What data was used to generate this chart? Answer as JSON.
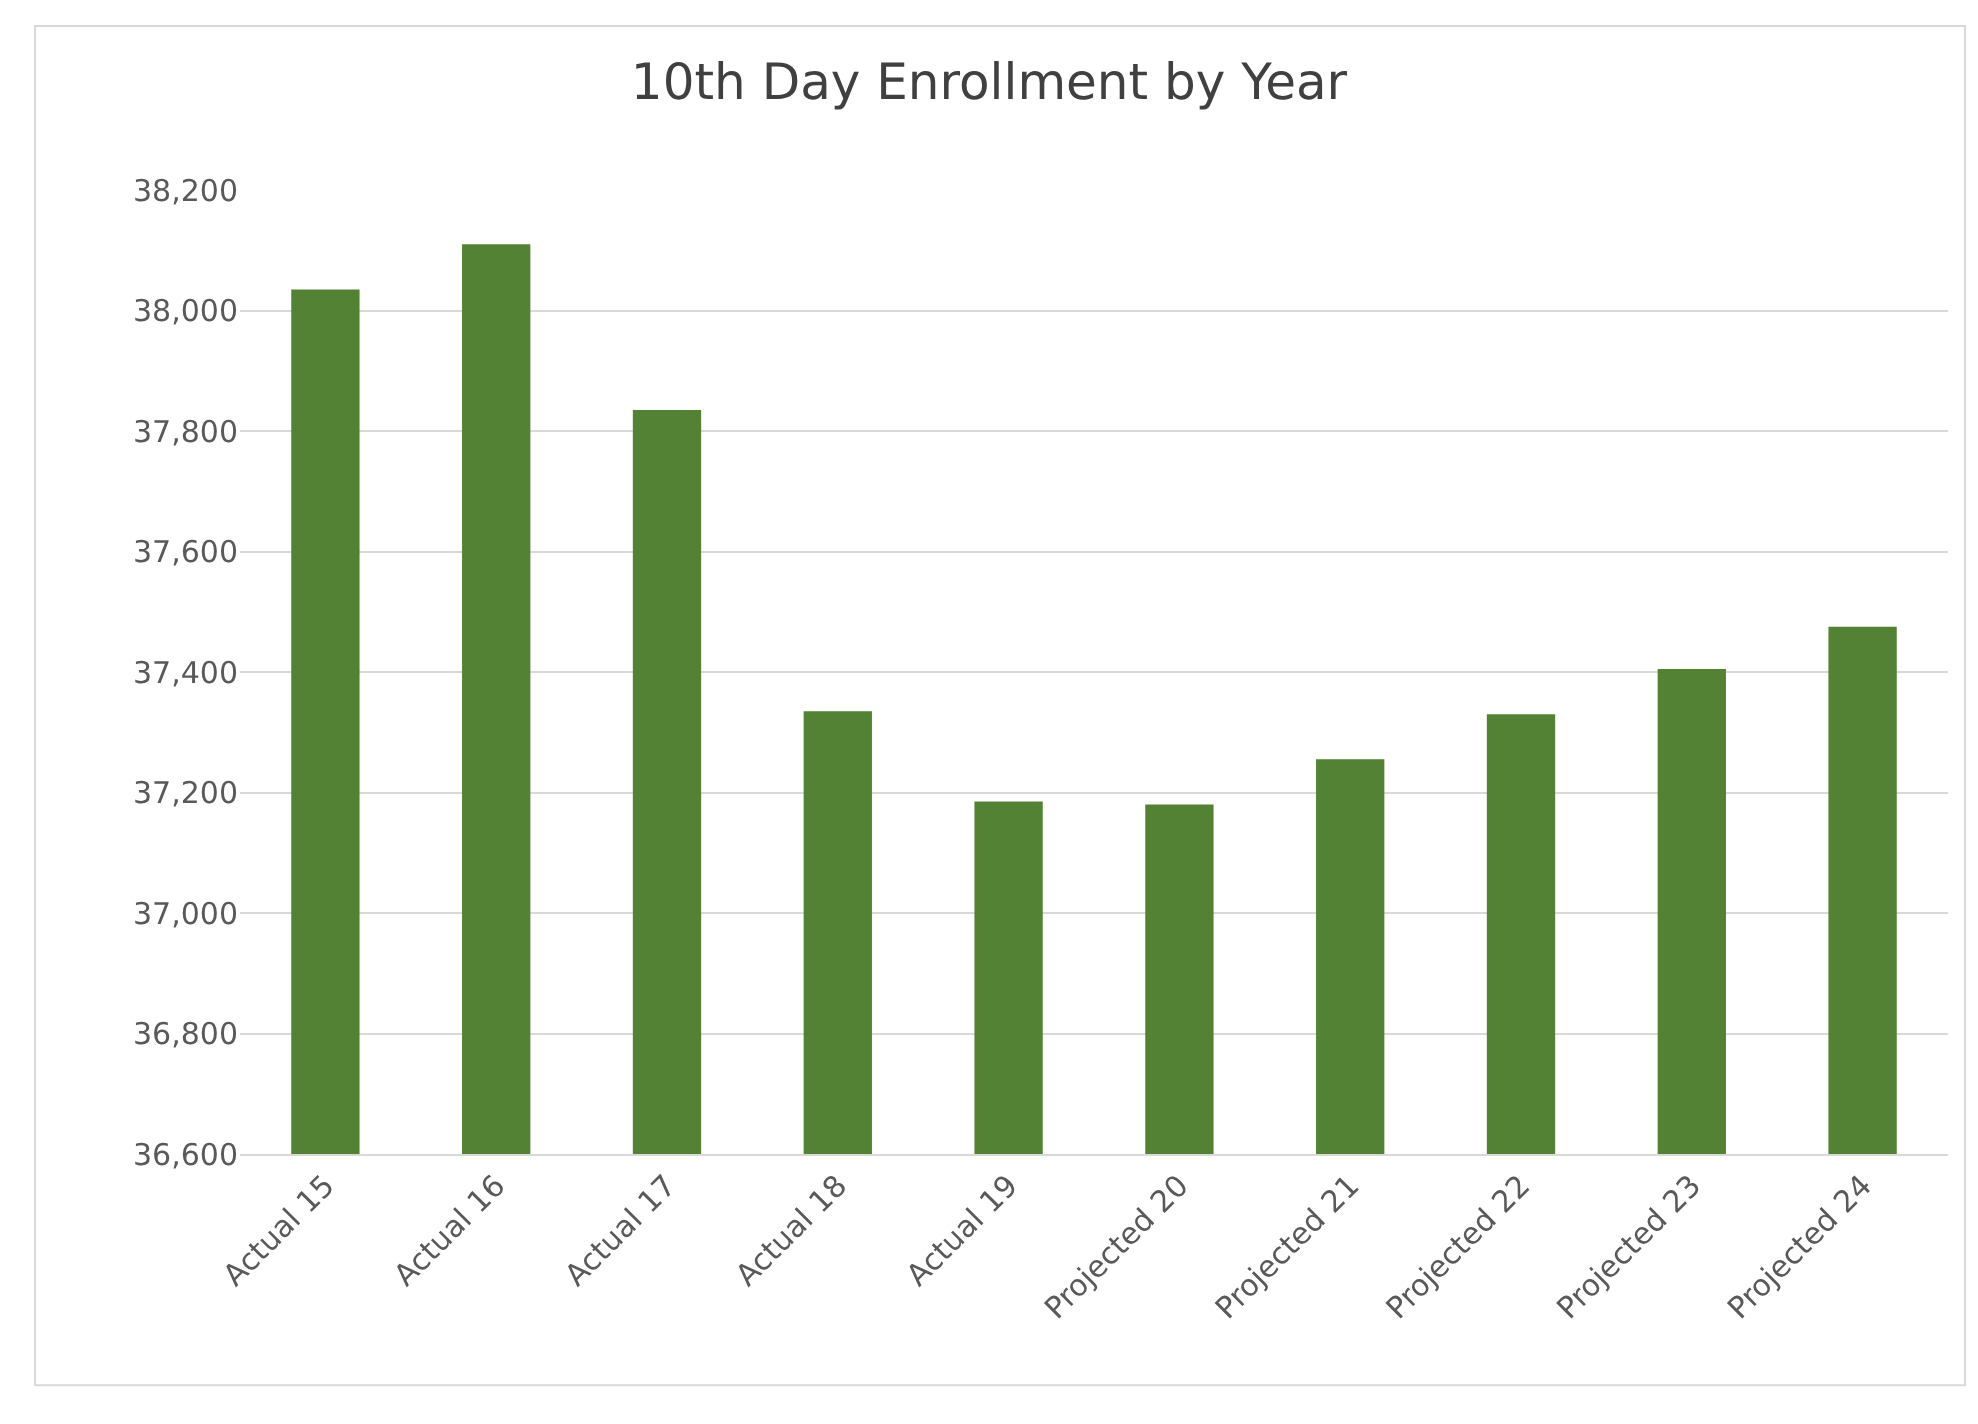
{
  "chart_data": {
    "type": "bar",
    "title": "10th Day Enrollment by Year",
    "categories": [
      "Actual 15",
      "Actual 16",
      "Actual 17",
      "Actual 18",
      "Actual 19",
      "Projected 20",
      "Projected 21",
      "Projected 22",
      "Projected 23",
      "Projected 24"
    ],
    "values": [
      38035,
      38110,
      37835,
      37335,
      37185,
      37180,
      37255,
      37330,
      37405,
      37475
    ],
    "color": "#548235",
    "ylim": [
      36600,
      38200
    ],
    "yticks": [
      {
        "value": 36600,
        "label": "36,600"
      },
      {
        "value": 36800,
        "label": "36,800"
      },
      {
        "value": 37000,
        "label": "37,000"
      },
      {
        "value": 37200,
        "label": "37,200"
      },
      {
        "value": 37400,
        "label": "37,400"
      },
      {
        "value": 37600,
        "label": "37,600"
      },
      {
        "value": 37800,
        "label": "37,800"
      },
      {
        "value": 38000,
        "label": "38,000"
      },
      {
        "value": 38200,
        "label": "38,200"
      }
    ],
    "grid": "y",
    "legend": false
  }
}
